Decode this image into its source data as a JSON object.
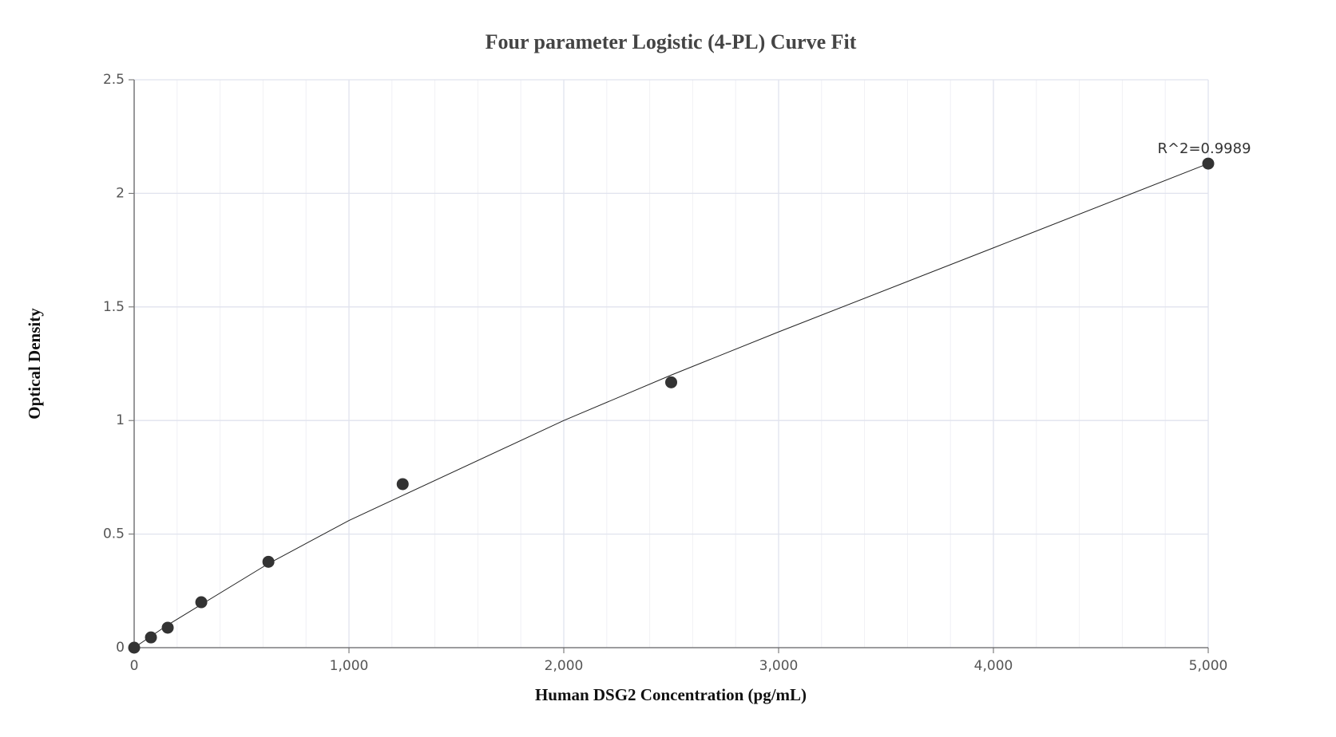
{
  "chart_data": {
    "type": "scatter",
    "title": "Four parameter Logistic (4-PL) Curve Fit",
    "x_label": "Human DSG2 Concentration (pg/mL)",
    "y_label": "Optical Density",
    "annotation": "R^2=0.9989",
    "points": {
      "x": [
        0,
        78.125,
        156.25,
        312.5,
        625,
        1250,
        2500,
        5000
      ],
      "values": [
        0.0,
        0.045,
        0.088,
        0.2,
        0.378,
        0.72,
        1.168,
        2.131
      ],
      "color": "#333333"
    },
    "curve": {
      "x": [
        0,
        78.125,
        156.25,
        312.5,
        625,
        1000,
        1250,
        2000,
        2500,
        3000,
        4000,
        5000
      ],
      "values": [
        0.0,
        0.05,
        0.1,
        0.19,
        0.37,
        0.56,
        0.67,
        1.0,
        1.2,
        1.39,
        1.76,
        2.131
      ],
      "color": "#222222"
    },
    "xlim": [
      0,
      5000
    ],
    "ylim": [
      0,
      2.5
    ],
    "xticks": [
      0,
      {
        "value": 1000,
        "label": "1,000"
      },
      {
        "value": 2000,
        "label": "2,000"
      },
      {
        "value": 3000,
        "label": "3,000"
      },
      {
        "value": 4000,
        "label": "4,000"
      },
      {
        "value": 5000,
        "label": "5,000"
      }
    ],
    "xminor": [
      200,
      400,
      600,
      800,
      1200,
      1400,
      1600,
      1800,
      2200,
      2400,
      2600,
      2800,
      3200,
      3400,
      3600,
      3800,
      4200,
      4400,
      4600,
      4800
    ],
    "yticks": [
      0,
      0.5,
      1,
      1.5,
      2,
      2.5
    ],
    "grid": true
  }
}
